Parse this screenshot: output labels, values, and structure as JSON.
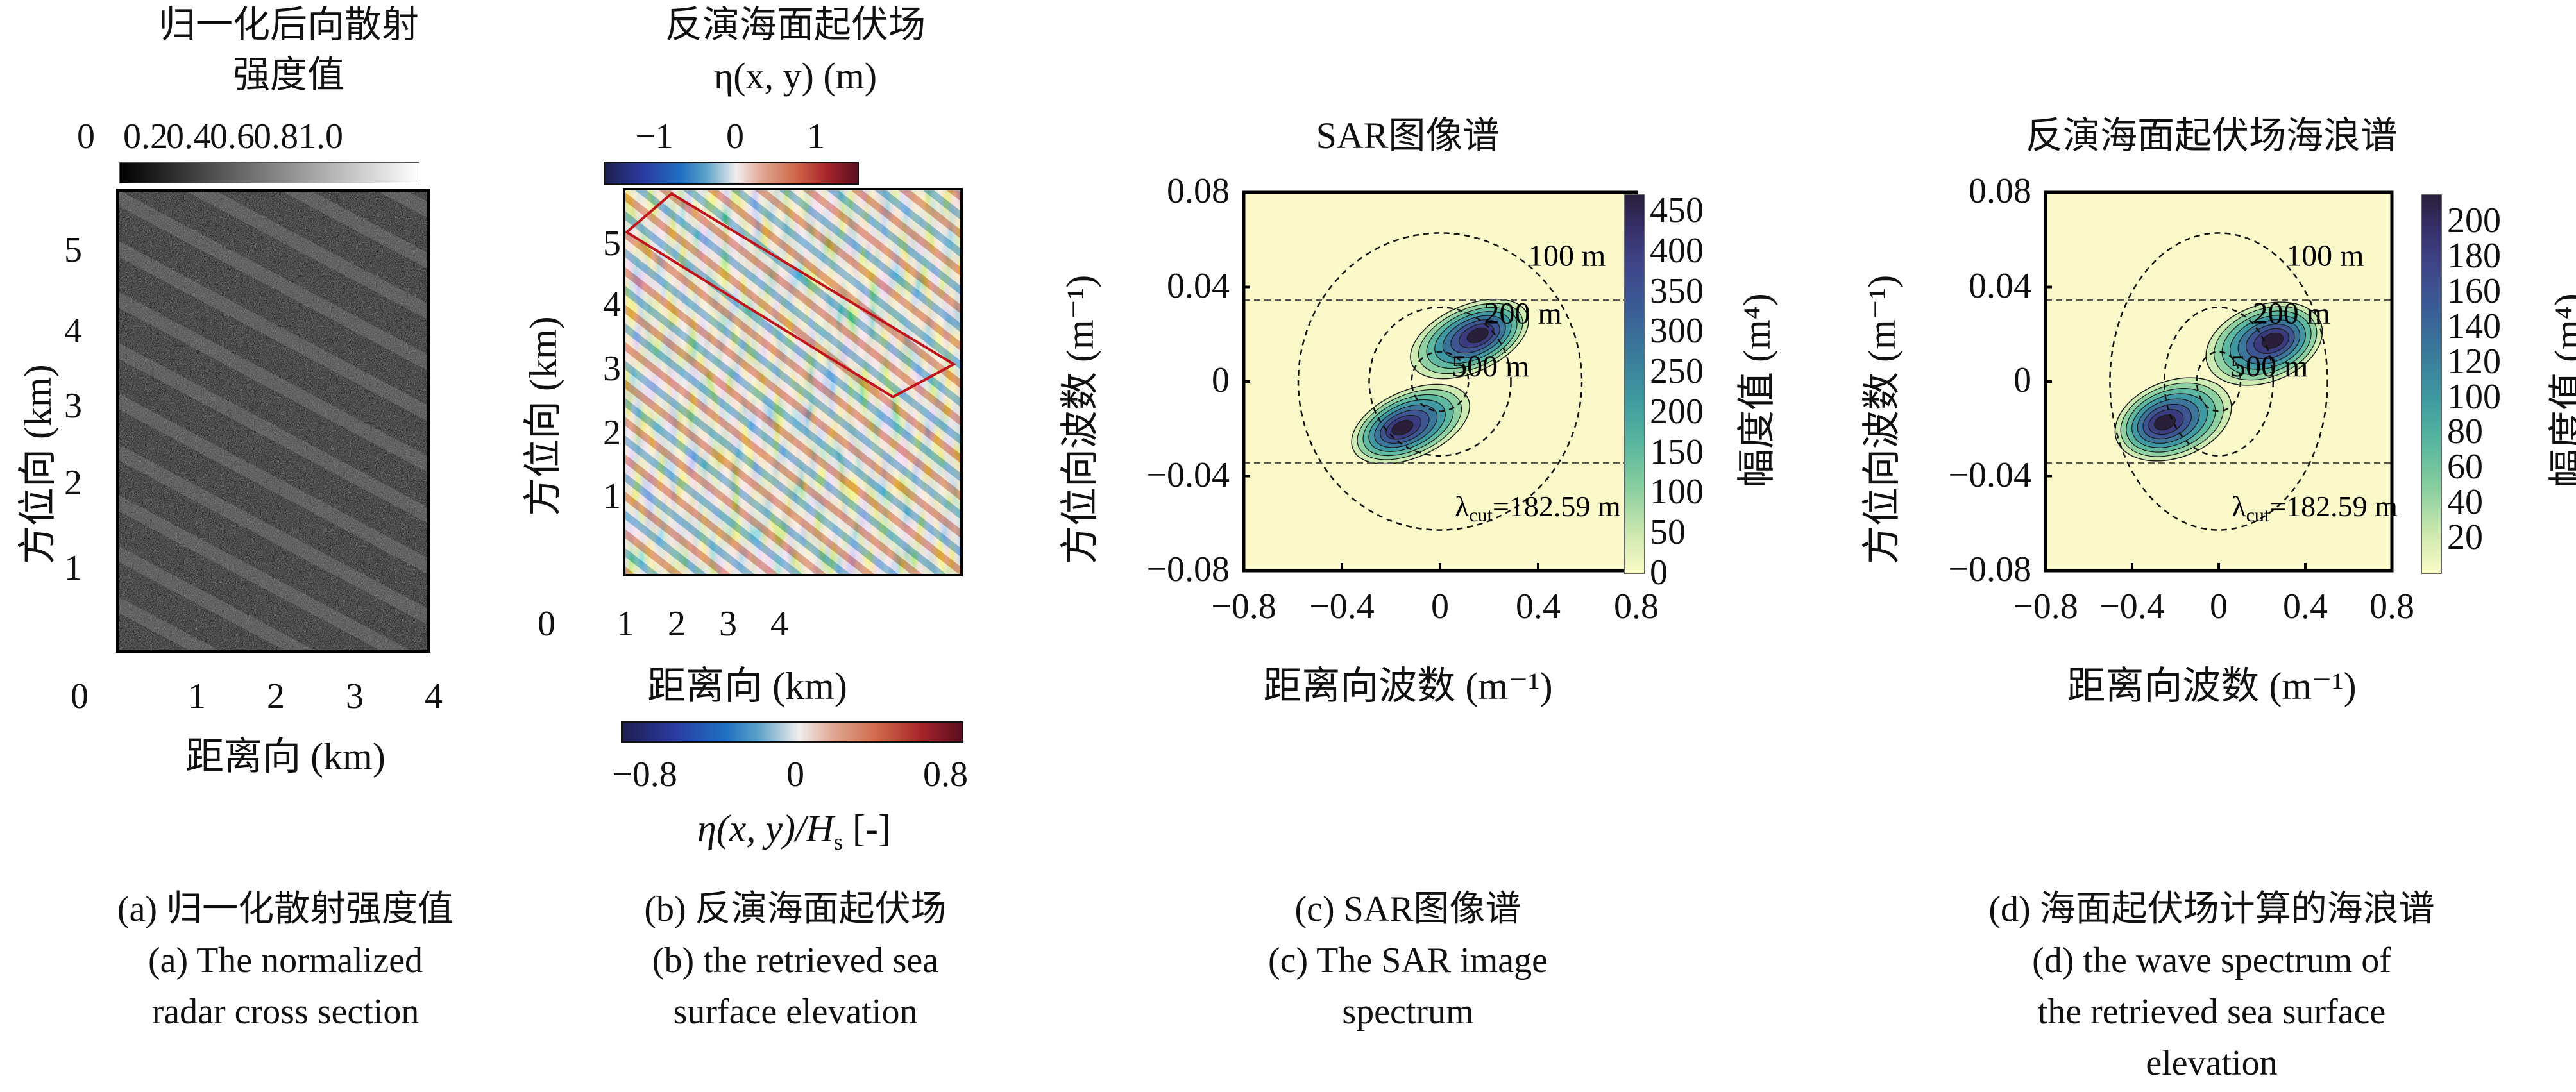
{
  "panels": {
    "a": {
      "title_line1": "归一化后向散射",
      "title_line2": "强度值",
      "colorbar_ticks": [
        "0",
        "0.2",
        "0.4",
        "0.6",
        "0.8",
        "1.0"
      ],
      "colorbar_range": [
        0,
        1.0
      ],
      "ylabel": "方位向 (km)",
      "xlabel": "距离向 (km)",
      "yticks": [
        "1",
        "2",
        "3",
        "4",
        "5"
      ],
      "xticks": [
        "0",
        "1",
        "2",
        "3",
        "4"
      ],
      "caption_cn": "(a) 归一化散射强度值",
      "caption_en1": "(a) The normalized",
      "caption_en2": "radar cross section"
    },
    "b": {
      "title_line1": "反演海面起伏场",
      "title_line2": "η(x, y) (m)",
      "top_colorbar_ticks": [
        "−1",
        "0",
        "1"
      ],
      "top_colorbar_range": [
        -1.5,
        1.5
      ],
      "ylabel": "方位向 (km)",
      "xlabel": "距离向 (km)",
      "yticks": [
        "1",
        "2",
        "3",
        "4",
        "5"
      ],
      "xticks": [
        "0",
        "1",
        "2",
        "3",
        "4"
      ],
      "bottom_colorbar_ticks": [
        "−0.8",
        "0",
        "0.8"
      ],
      "bottom_colorbar_range": [
        -1.0,
        1.0
      ],
      "bottom_colorbar_label": "η(x, y)/H",
      "bottom_colorbar_label_sub": "s",
      "bottom_colorbar_label_tail": " [-]",
      "highlight_box_color": "#c0141c",
      "caption_cn": "(b) 反演海面起伏场",
      "caption_en1": "(b) the retrieved sea",
      "caption_en2": "surface elevation"
    },
    "c": {
      "title": "SAR图像谱",
      "caption_cn": "(c) SAR图像谱",
      "caption_en1": "(c) The SAR image",
      "caption_en2": "spectrum"
    },
    "d": {
      "title": "反演海面起伏场海浪谱",
      "caption_cn": "(d) 海面起伏场计算的海浪谱",
      "caption_en1": "(d) the wave spectrum of",
      "caption_en2": "the retrieved sea surface",
      "caption_en3": "elevation"
    }
  },
  "chart_data": [
    {
      "type": "heatmap",
      "panel": "c",
      "title": "SAR图像谱",
      "xlabel": "距离向波数 (m⁻¹)",
      "ylabel": "方位向波数 (m⁻¹)",
      "xlim": [
        -0.8,
        0.8
      ],
      "ylim": [
        -0.08,
        0.08
      ],
      "xticks": [
        "−0.8",
        "−0.4",
        "0",
        "0.4",
        "0.8"
      ],
      "yticks": [
        "0.08",
        "0.04",
        "0",
        "−0.04",
        "−0.08"
      ],
      "colorbar_label": "幅度值 (m⁴)",
      "colorbar_ticks": [
        "0",
        "50",
        "100",
        "150",
        "200",
        "250",
        "300",
        "350",
        "400",
        "450"
      ],
      "colorbar_range": [
        0,
        470
      ],
      "wavelength_circles": [
        {
          "label": "100 m",
          "k": 0.0628
        },
        {
          "label": "200 m",
          "k": 0.0314
        },
        {
          "label": "500 m",
          "k": 0.0126
        }
      ],
      "cutoff_lines_k": [
        0.0344,
        -0.0344
      ],
      "cutoff_label": "λ",
      "cutoff_label_sub": "cut",
      "cutoff_label_value": "=182.59 m",
      "peaks": [
        {
          "kx": 0.12,
          "ky": 0.018,
          "max": 450
        },
        {
          "kx": -0.12,
          "ky": -0.018,
          "max": 450
        }
      ]
    },
    {
      "type": "heatmap",
      "panel": "d",
      "title": "反演海面起伏场海浪谱",
      "xlabel": "距离向波数 (m⁻¹)",
      "ylabel": "方位向波数 (m⁻¹)",
      "xlim": [
        -0.8,
        0.8
      ],
      "ylim": [
        -0.08,
        0.08
      ],
      "xticks": [
        "−0.8",
        "−0.4",
        "0",
        "0.4",
        "0.8"
      ],
      "yticks": [
        "0.08",
        "0.04",
        "0",
        "−0.04",
        "−0.08"
      ],
      "colorbar_label": "幅度值 (m⁴)",
      "colorbar_ticks": [
        "20",
        "40",
        "60",
        "80",
        "100",
        "120",
        "140",
        "160",
        "180",
        "200"
      ],
      "colorbar_range": [
        0,
        215
      ],
      "wavelength_circles": [
        {
          "label": "100 m",
          "k": 0.0628
        },
        {
          "label": "200 m",
          "k": 0.0314
        },
        {
          "label": "500 m",
          "k": 0.0126
        }
      ],
      "cutoff_lines_k": [
        0.0344,
        -0.0344
      ],
      "cutoff_label": "λ",
      "cutoff_label_sub": "cut",
      "cutoff_label_value": "=182.59 m",
      "peaks": [
        {
          "kx": 0.21,
          "ky": 0.016,
          "max": 210
        },
        {
          "kx": -0.21,
          "ky": -0.016,
          "max": 210
        }
      ]
    }
  ]
}
